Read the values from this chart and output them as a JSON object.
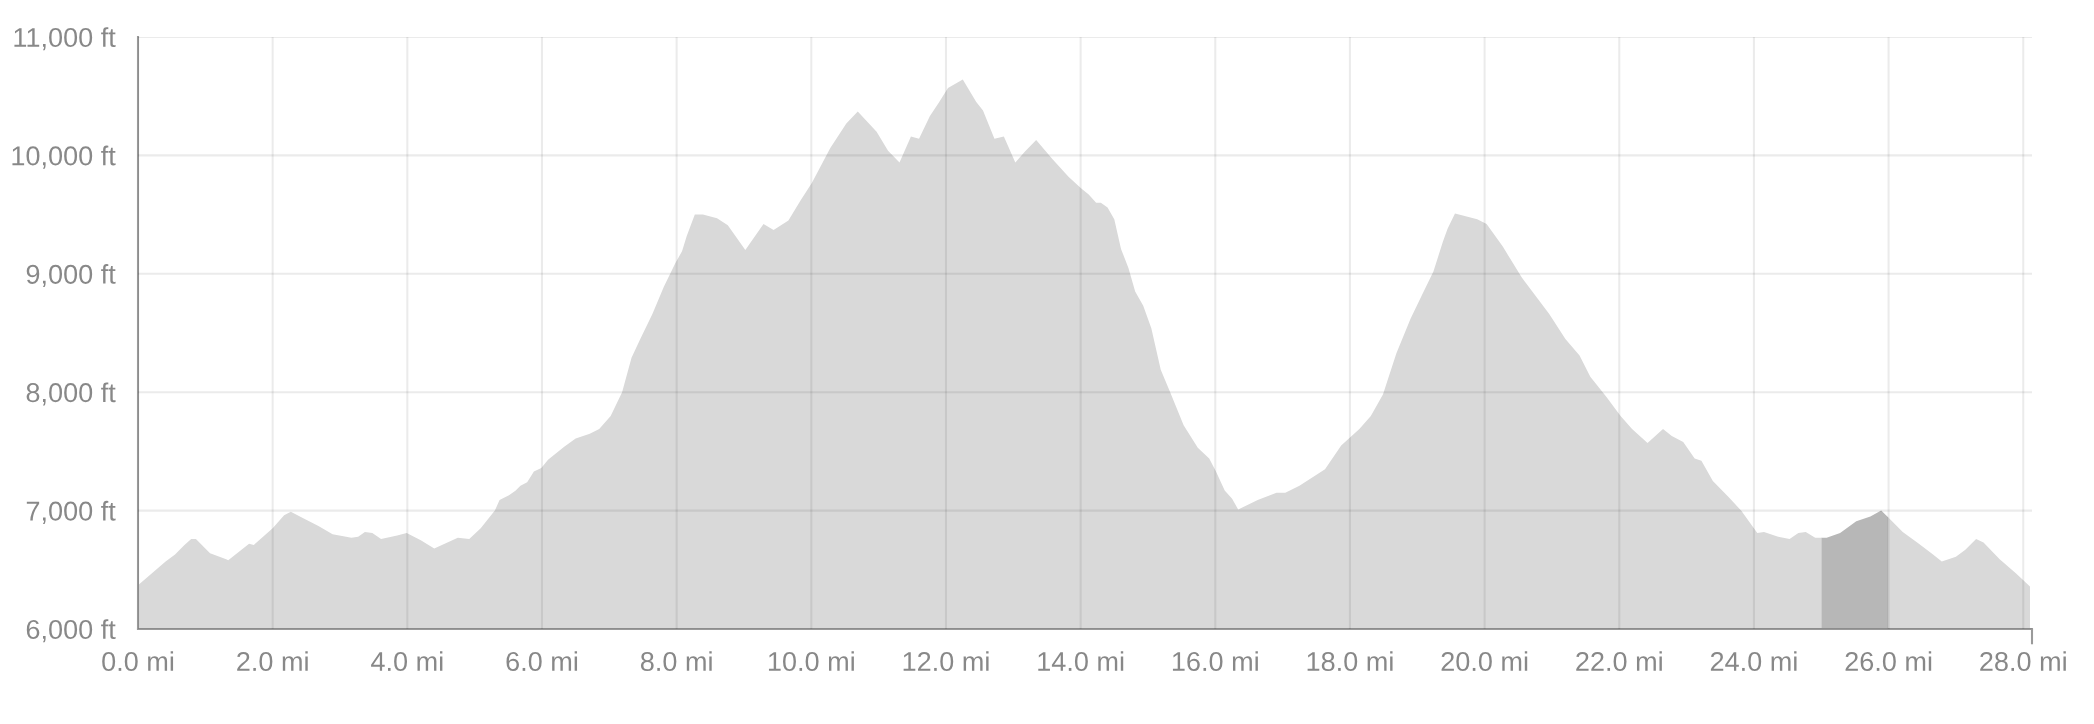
{
  "chart_data": {
    "type": "area",
    "x": [
      0,
      0.41,
      0.55,
      0.69,
      0.79,
      0.86,
      1.07,
      1.31,
      1.34,
      1.65,
      1.72,
      2.0,
      2.17,
      2.27,
      2.44,
      2.68,
      2.89,
      3.17,
      3.27,
      3.37,
      3.48,
      3.61,
      3.85,
      3.99,
      4.2,
      4.4,
      4.75,
      4.92,
      5.09,
      5.3,
      5.37,
      5.51,
      5.61,
      5.68,
      5.78,
      5.88,
      5.99,
      6.09,
      6.33,
      6.5,
      6.71,
      6.85,
      7.02,
      7.19,
      7.33,
      7.46,
      7.64,
      7.81,
      7.98,
      8.08,
      8.15,
      8.27,
      8.39,
      8.6,
      8.76,
      9.02,
      9.29,
      9.44,
      9.66,
      9.84,
      10.01,
      10.28,
      10.52,
      10.69,
      10.97,
      11.14,
      11.31,
      11.48,
      11.6,
      11.76,
      11.9,
      12.03,
      12.25,
      12.45,
      12.55,
      12.72,
      12.86,
      13.03,
      13.17,
      13.34,
      13.58,
      13.82,
      14.01,
      14.12,
      14.23,
      14.3,
      14.4,
      14.5,
      14.6,
      14.71,
      14.81,
      14.93,
      15.05,
      15.19,
      15.33,
      15.53,
      15.74,
      15.91,
      16.01,
      16.14,
      16.25,
      16.34,
      16.63,
      16.91,
      17.04,
      17.25,
      17.63,
      17.87,
      18.14,
      18.31,
      18.49,
      18.69,
      18.9,
      19.07,
      19.24,
      19.38,
      19.45,
      19.56,
      19.69,
      19.89,
      20.03,
      20.27,
      20.55,
      20.96,
      21.2,
      21.41,
      21.57,
      21.81,
      22.02,
      22.19,
      22.42,
      22.65,
      22.78,
      22.95,
      23.12,
      23.22,
      23.39,
      23.63,
      23.81,
      24.05,
      24.15,
      24.36,
      24.53,
      24.66,
      24.77,
      24.91,
      25.08,
      25.28,
      25.52,
      25.73,
      25.89,
      26.0,
      26.21,
      26.45,
      26.66,
      26.79,
      27.0,
      27.14,
      27.3,
      27.41,
      27.65,
      27.89,
      28.1
    ],
    "series": [
      {
        "color": "#d9d9d9",
        "values": [
          6370,
          6570,
          6630,
          6710,
          6760,
          6760,
          6640,
          6590,
          6580,
          6720,
          6710,
          6850,
          6960,
          6990,
          6940,
          6870,
          6800,
          6770,
          6780,
          6820,
          6810,
          6760,
          6790,
          6810,
          6750,
          6680,
          6770,
          6760,
          6850,
          7000,
          7090,
          7130,
          7170,
          7210,
          7240,
          7330,
          7360,
          7430,
          7540,
          7610,
          7650,
          7690,
          7800,
          8000,
          8290,
          8450,
          8660,
          8890,
          9090,
          9190,
          9320,
          9500,
          9500,
          9470,
          9410,
          9200,
          9420,
          9370,
          9450,
          9620,
          9770,
          10060,
          10270,
          10370,
          10200,
          10040,
          9940,
          10160,
          10140,
          10330,
          10450,
          10570,
          10640,
          10450,
          10380,
          10140,
          10160,
          9940,
          10030,
          10130,
          9970,
          9820,
          9720,
          9670,
          9600,
          9600,
          9560,
          9460,
          9210,
          9050,
          8850,
          8730,
          8540,
          8190,
          8000,
          7720,
          7530,
          7440,
          7330,
          7170,
          7100,
          7010,
          7090,
          7150,
          7150,
          7210,
          7350,
          7550,
          7690,
          7800,
          7980,
          8330,
          8620,
          8820,
          9020,
          9270,
          9380,
          9510,
          9490,
          9460,
          9420,
          9230,
          8970,
          8660,
          8450,
          8310,
          8130,
          7960,
          7800,
          7690,
          7570,
          7690,
          7630,
          7580,
          7440,
          7420,
          7250,
          7110,
          7000,
          6810,
          6820,
          6780,
          6760,
          6810,
          6820,
          6770,
          6770,
          6810,
          6910,
          6950,
          7000,
          6940,
          6820,
          6720,
          6630,
          6570,
          6610,
          6670,
          6760,
          6730,
          6590,
          6470,
          6360
        ]
      }
    ],
    "xlim": [
      0,
      28.13
    ],
    "ylim": [
      6000,
      11000
    ],
    "xticks": [
      {
        "value": 0,
        "label": "0.0 mi"
      },
      {
        "value": 2,
        "label": "2.0 mi"
      },
      {
        "value": 4,
        "label": "4.0 mi"
      },
      {
        "value": 6,
        "label": "6.0 mi"
      },
      {
        "value": 8,
        "label": "8.0 mi"
      },
      {
        "value": 10,
        "label": "10.0 mi"
      },
      {
        "value": 12,
        "label": "12.0 mi"
      },
      {
        "value": 14,
        "label": "14.0 mi"
      },
      {
        "value": 16,
        "label": "16.0 mi"
      },
      {
        "value": 18,
        "label": "18.0 mi"
      },
      {
        "value": 20,
        "label": "20.0 mi"
      },
      {
        "value": 22,
        "label": "22.0 mi"
      },
      {
        "value": 24,
        "label": "24.0 mi"
      },
      {
        "value": 26,
        "label": "26.0 mi"
      },
      {
        "value": 28,
        "label": "28.0 mi"
      }
    ],
    "yticks": [
      {
        "value": 6000,
        "label": "6,000 ft"
      },
      {
        "value": 7000,
        "label": "7,000 ft"
      },
      {
        "value": 8000,
        "label": "8,000 ft"
      },
      {
        "value": 9000,
        "label": "9,000 ft"
      },
      {
        "value": 10000,
        "label": "10,000 ft"
      },
      {
        "value": 11000,
        "label": "11,000 ft"
      }
    ],
    "grid": true,
    "bands": [
      {
        "axis": "x",
        "from": 25,
        "to": 26,
        "color": "#b7b7b7"
      }
    ]
  }
}
